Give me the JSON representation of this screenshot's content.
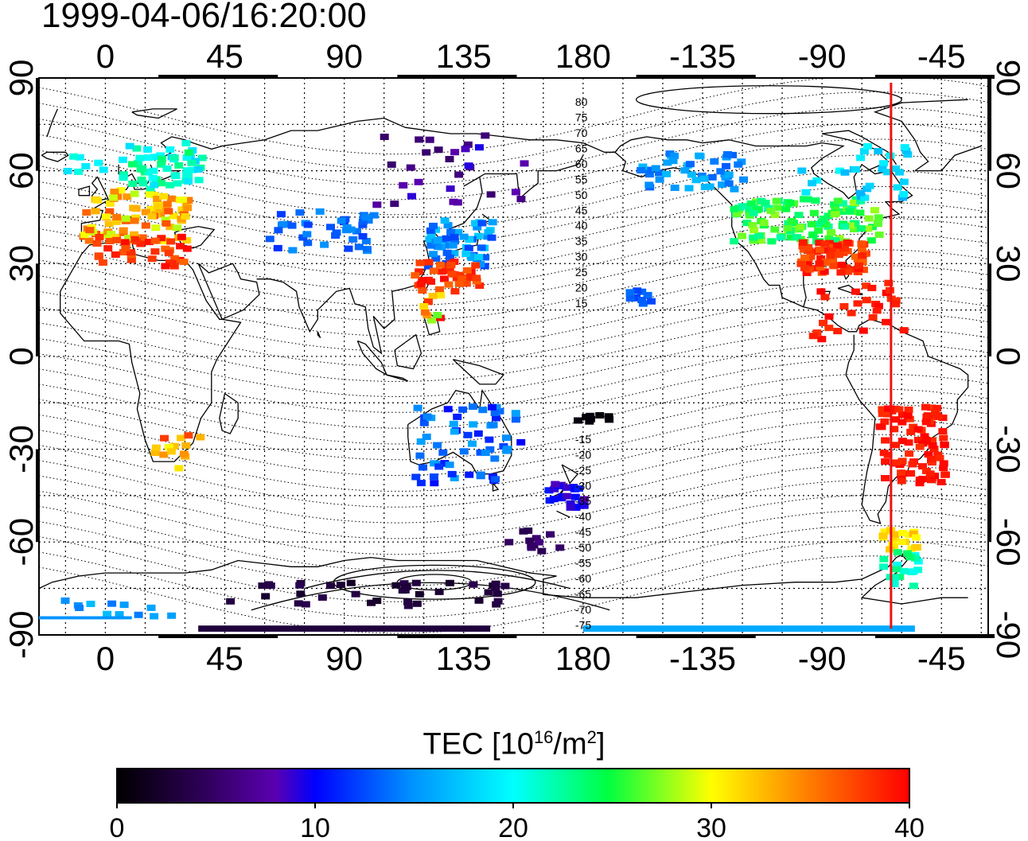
{
  "title": "1999-04-06/16:20:00",
  "axes": {
    "lon_ticks": [
      "0",
      "45",
      "90",
      "135",
      "180",
      "-135",
      "-90",
      "-45"
    ],
    "lat_ticks": [
      "90",
      "60",
      "30",
      "0",
      "-30",
      "-60",
      "-90"
    ]
  },
  "contour_labels": [
    "80",
    "75",
    "70",
    "65",
    "60",
    "55",
    "50",
    "45",
    "40",
    "35",
    "30",
    "25",
    "20",
    "15",
    "-15",
    "-20",
    "-25",
    "-30",
    "-35",
    "-40",
    "-45",
    "-50",
    "-55",
    "-60",
    "-65",
    "-70",
    "-75"
  ],
  "marker": {
    "longitude": -64,
    "color": "#ee1111"
  },
  "colorbar": {
    "label_main": "TEC  [10",
    "label_exp": "16",
    "label_mid": "/m",
    "label_exp2": "2",
    "label_end": "]",
    "ticks": [
      "0",
      "10",
      "20",
      "30",
      "40"
    ],
    "range": [
      0,
      40
    ]
  },
  "tec_clusters": [
    {
      "name": "europe-north",
      "lon": [
        5,
        35
      ],
      "lat": [
        55,
        70
      ],
      "tec": [
        18,
        24
      ],
      "n": 55
    },
    {
      "name": "europe-central",
      "lon": [
        -10,
        30
      ],
      "lat": [
        38,
        55
      ],
      "tec": [
        28,
        37
      ],
      "n": 90
    },
    {
      "name": "mediterranean",
      "lon": [
        -5,
        30
      ],
      "lat": [
        30,
        40
      ],
      "tec": [
        36,
        40
      ],
      "n": 40
    },
    {
      "name": "scandinavia-west",
      "lon": [
        -20,
        5
      ],
      "lat": [
        60,
        66
      ],
      "tec": [
        18,
        22
      ],
      "n": 8
    },
    {
      "name": "russia-west",
      "lon": [
        60,
        100
      ],
      "lat": [
        35,
        48
      ],
      "tec": [
        11,
        15
      ],
      "n": 40
    },
    {
      "name": "siberia",
      "lon": [
        100,
        160
      ],
      "lat": [
        50,
        75
      ],
      "tec": [
        5,
        10
      ],
      "n": 28
    },
    {
      "name": "japan",
      "lon": [
        120,
        145
      ],
      "lat": [
        30,
        45
      ],
      "tec": [
        12,
        18
      ],
      "n": 55
    },
    {
      "name": "china-south",
      "lon": [
        115,
        140
      ],
      "lat": [
        22,
        32
      ],
      "tec": [
        36,
        40
      ],
      "n": 40
    },
    {
      "name": "taiwan-philippines",
      "lon": [
        118,
        125
      ],
      "lat": [
        10,
        22
      ],
      "tec": [
        24,
        40
      ],
      "n": 10
    },
    {
      "name": "alaska",
      "lon": [
        -160,
        -120
      ],
      "lat": [
        55,
        67
      ],
      "tec": [
        13,
        17
      ],
      "n": 45
    },
    {
      "name": "north-america",
      "lon": [
        -125,
        -70
      ],
      "lat": [
        38,
        52
      ],
      "tec": [
        22,
        28
      ],
      "n": 120
    },
    {
      "name": "usa-south",
      "lon": [
        -100,
        -75
      ],
      "lat": [
        28,
        38
      ],
      "tec": [
        36,
        40
      ],
      "n": 70
    },
    {
      "name": "canada-north",
      "lon": [
        -100,
        -55
      ],
      "lat": [
        52,
        70
      ],
      "tec": [
        16,
        20
      ],
      "n": 30
    },
    {
      "name": "caribbean",
      "lon": [
        -95,
        -60
      ],
      "lat": [
        5,
        25
      ],
      "tec": [
        38,
        40
      ],
      "n": 30
    },
    {
      "name": "hawaii",
      "lon": [
        -165,
        -155
      ],
      "lat": [
        18,
        25
      ],
      "tec": [
        12,
        14
      ],
      "n": 10
    },
    {
      "name": "australia",
      "lon": [
        115,
        155
      ],
      "lat": [
        -40,
        -15
      ],
      "tec": [
        10,
        16
      ],
      "n": 60
    },
    {
      "name": "south-america",
      "lon": [
        -70,
        -45
      ],
      "lat": [
        -40,
        -15
      ],
      "tec": [
        38,
        40
      ],
      "n": 90
    },
    {
      "name": "patagonia",
      "lon": [
        -70,
        -55
      ],
      "lat": [
        -62,
        -55
      ],
      "tec": [
        30,
        33
      ],
      "n": 20
    },
    {
      "name": "antarctic-peninsula",
      "lon": [
        -70,
        -55
      ],
      "lat": [
        -75,
        -62
      ],
      "tec": [
        20,
        24
      ],
      "n": 20
    },
    {
      "name": "south-africa",
      "lon": [
        15,
        35
      ],
      "lat": [
        -36,
        -24
      ],
      "tec": [
        30,
        38
      ],
      "n": 14
    },
    {
      "name": "new-zealand",
      "lon": [
        165,
        180
      ],
      "lat": [
        -48,
        -40
      ],
      "tec": [
        8,
        11
      ],
      "n": 22
    },
    {
      "name": "antarctica-sector",
      "lon": [
        45,
        150
      ],
      "lat": [
        -80,
        -72
      ],
      "tec": [
        2,
        4
      ],
      "n": 40
    },
    {
      "name": "southern-ocean-pacific",
      "lon": [
        150,
        170
      ],
      "lat": [
        -62,
        -55
      ],
      "tec": [
        4,
        6
      ],
      "n": 12
    },
    {
      "name": "antarctica-indian",
      "lon": [
        -20,
        30
      ],
      "lat": [
        -83,
        -76
      ],
      "tec": [
        14,
        17
      ],
      "n": 12
    },
    {
      "name": "fiji",
      "lon": [
        175,
        190
      ],
      "lat": [
        -22,
        -18
      ],
      "tec": [
        0,
        1
      ],
      "n": 8
    }
  ],
  "tec_bands": [
    {
      "name": "band-indian",
      "lon": [
        35,
        145
      ],
      "lat": [
        -89,
        -87
      ],
      "tec": 3
    },
    {
      "name": "band-pacific",
      "lon": [
        180,
        -55
      ],
      "lat": [
        -89,
        -87
      ],
      "tec": 16
    },
    {
      "name": "band-atlantic",
      "lon": [
        -25,
        10
      ],
      "lat": [
        -85,
        -84
      ],
      "tec": 15
    }
  ]
}
